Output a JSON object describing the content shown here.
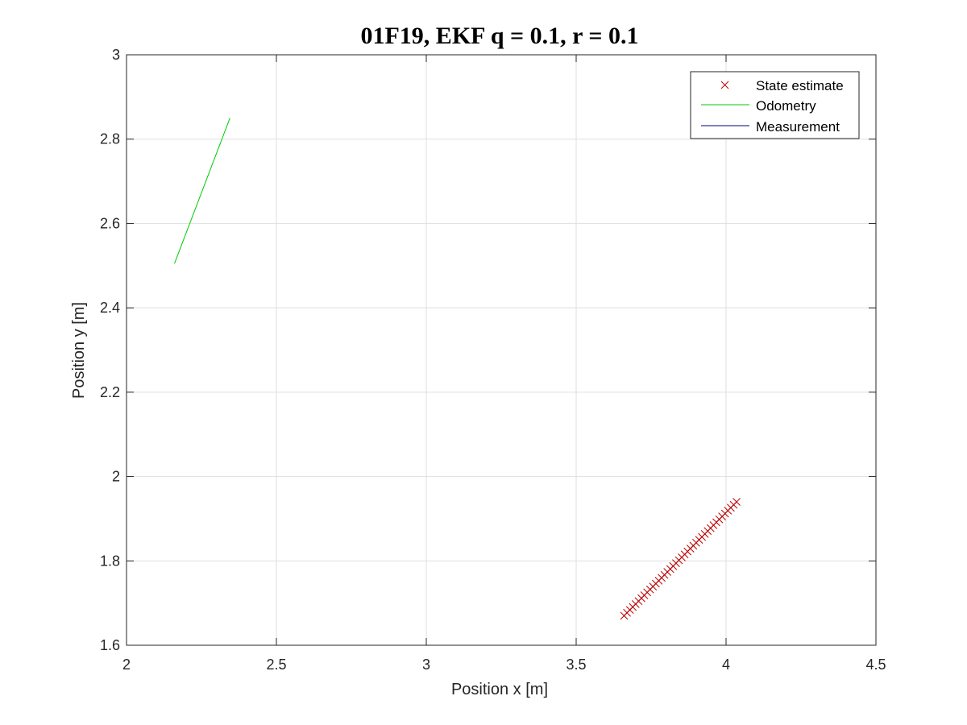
{
  "chart_data": {
    "type": "line",
    "title": "01F19, EKF q = 0.1, r = 0.1",
    "xlabel": "Position x [m]",
    "ylabel": "Position y [m]",
    "xlim": [
      2,
      4.5
    ],
    "ylim": [
      1.6,
      3
    ],
    "xticks": [
      2,
      2.5,
      3,
      3.5,
      4,
      4.5
    ],
    "xtick_labels": [
      "2",
      "2.5",
      "3",
      "3.5",
      "4",
      "4.5"
    ],
    "yticks": [
      1.6,
      1.8,
      2,
      2.2,
      2.4,
      2.6,
      2.8,
      3
    ],
    "ytick_labels": [
      "1.6",
      "1.8",
      "2",
      "2.2",
      "2.4",
      "2.6",
      "2.8",
      "3"
    ],
    "grid": true,
    "legend_position": "top-right",
    "series": [
      {
        "name": "State estimate",
        "type": "scatter",
        "marker": "x",
        "color": "#c00000",
        "x_start": 3.66,
        "y_start": 1.67,
        "x_end": 4.035,
        "y_end": 1.94,
        "count": 40
      },
      {
        "name": "Odometry",
        "type": "line",
        "color": "#00cc00",
        "x": [
          2.16,
          2.345
        ],
        "y": [
          2.505,
          2.85
        ]
      },
      {
        "name": "Measurement",
        "type": "line",
        "color": "#00007f",
        "x": [
          3.66,
          4.035
        ],
        "y": [
          1.67,
          1.94
        ]
      }
    ]
  }
}
